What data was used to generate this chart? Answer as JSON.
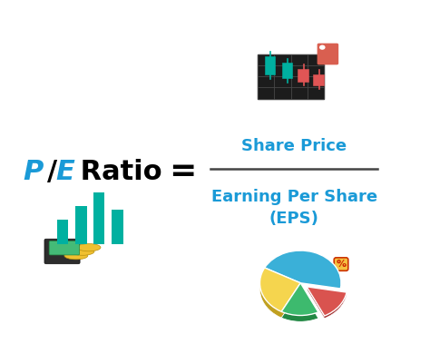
{
  "background_color": "#ffffff",
  "pe_P_color": "#1a9ad7",
  "pe_E_color": "#1a9ad7",
  "pe_slash_color": "#000000",
  "pe_ratio_color": "#000000",
  "equals_color": "#000000",
  "share_price_color": "#1a9ad7",
  "eps_color": "#1a9ad7",
  "fraction_line_color": "#444444",
  "numerator_text": "Share Price",
  "denominator_text": "Earning Per Share\n(EPS)",
  "pe_text_P": "P",
  "pe_text_slash": "/",
  "pe_text_E": "E",
  "pe_text_ratio": " Ratio",
  "equals_text": "=",
  "pie_colors": [
    "#3ab0d8",
    "#f5d54e",
    "#3dba6e",
    "#d9534f"
  ],
  "pie_slices": [
    0.45,
    0.25,
    0.15,
    0.15
  ],
  "candle_green": "#00b0a0",
  "candle_red": "#e05555"
}
